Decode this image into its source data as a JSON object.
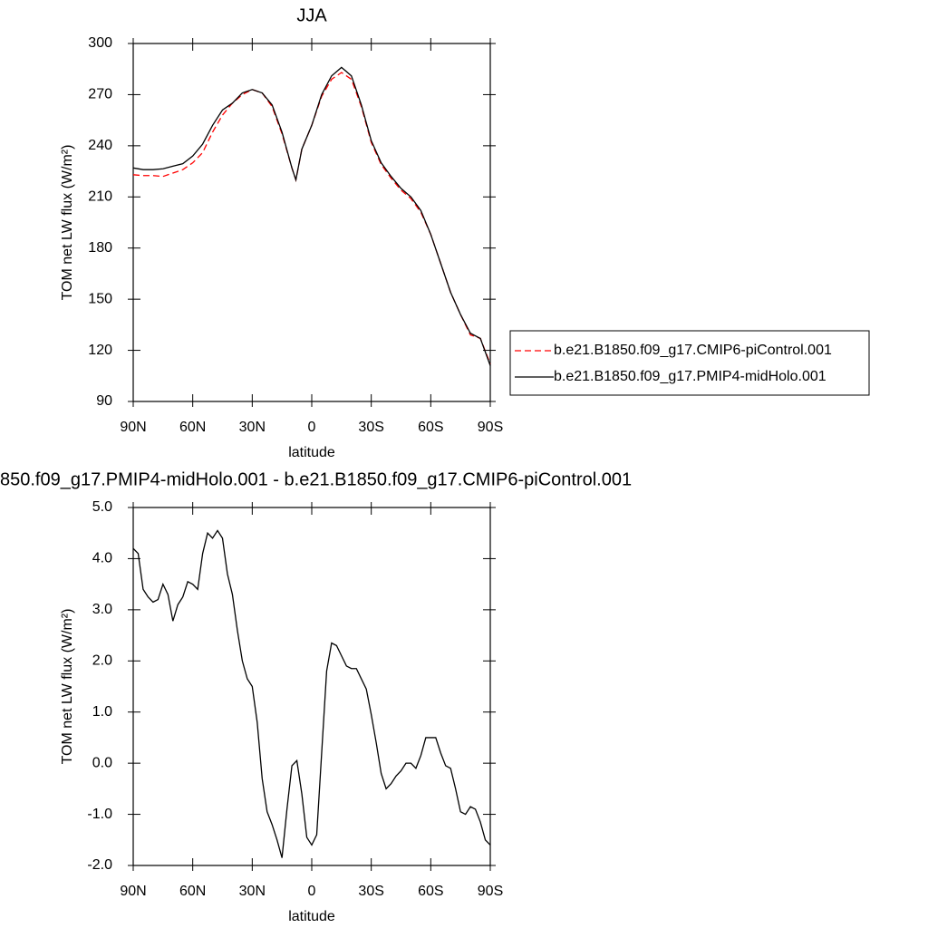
{
  "chart_data": [
    {
      "type": "line",
      "title": "JJA",
      "xlabel": "latitude",
      "ylabel": "TOM net LW flux (W/m²)",
      "x": [
        90,
        85,
        80,
        75,
        70,
        65,
        60,
        55,
        50,
        45,
        40,
        35,
        30,
        25,
        20,
        15,
        10,
        8,
        5,
        0,
        -5,
        -10,
        -15,
        -20,
        -25,
        -30,
        -35,
        -40,
        -45,
        -50,
        -55,
        -60,
        -65,
        -70,
        -75,
        -80,
        -85,
        -90
      ],
      "series": [
        {
          "name": "b.e21.B1850.f09_g17.CMIP6-piControl.001",
          "color": "#ff0000",
          "style": "dashed",
          "values": [
            223,
            222.5,
            222.5,
            222,
            224,
            226,
            230,
            236,
            248,
            258,
            265,
            270,
            273,
            271,
            263,
            247,
            227,
            220,
            238,
            252,
            269,
            279,
            283,
            279,
            263,
            242,
            229,
            221,
            214,
            209,
            201,
            188,
            171,
            154,
            141,
            129,
            127,
            112
          ]
        },
        {
          "name": "b.e21.B1850.f09_g17.PMIP4-midHolo.001",
          "color": "#000000",
          "style": "solid",
          "values": [
            227,
            226,
            226,
            226.5,
            228,
            229.5,
            234,
            241,
            252,
            261,
            265,
            271,
            273,
            271,
            264,
            248,
            227,
            220,
            238,
            252,
            270,
            281,
            286,
            281,
            264,
            243,
            230,
            222,
            215,
            210,
            202,
            188,
            171,
            154,
            141,
            130,
            127,
            111
          ]
        }
      ],
      "xlim": [
        90,
        -90
      ],
      "xticks": [
        {
          "value": 90,
          "label": "90N"
        },
        {
          "value": 60,
          "label": "60N"
        },
        {
          "value": 30,
          "label": "30N"
        },
        0,
        {
          "value": -30,
          "label": "30S"
        },
        {
          "value": -60,
          "label": "60S"
        },
        {
          "value": -90,
          "label": "90S"
        }
      ],
      "ylim": [
        90,
        300
      ],
      "yticks": [
        90,
        120,
        150,
        180,
        210,
        240,
        270,
        300
      ],
      "legend": "right"
    },
    {
      "type": "line",
      "title": "850.f09_g17.PMIP4-midHolo.001 - b.e21.B1850.f09_g17.CMIP6-piControl.001",
      "xlabel": "latitude",
      "ylabel": "TOM net LW flux (W/m²)",
      "x": [
        90,
        87.5,
        85,
        82.5,
        80,
        77.5,
        75,
        72.5,
        70,
        67.5,
        65,
        62.5,
        60,
        57.5,
        55,
        52.5,
        50,
        47.5,
        45,
        42.5,
        40,
        37.5,
        35,
        32.5,
        30,
        27.5,
        25,
        22.5,
        20,
        17.5,
        15,
        12.5,
        10,
        7.5,
        5,
        2.5,
        0,
        -2.5,
        -5,
        -7.5,
        -10,
        -12.5,
        -15,
        -17.5,
        -20,
        -22.5,
        -25,
        -27.5,
        -30,
        -32.5,
        -35,
        -37.5,
        -40,
        -42.5,
        -45,
        -47.5,
        -50,
        -52.5,
        -55,
        -57.5,
        -60,
        -62.5,
        -65,
        -67.5,
        -70,
        -72.5,
        -75,
        -77.5,
        -80,
        -82.5,
        -85,
        -87.5,
        -90
      ],
      "series": [
        {
          "color": "#000000",
          "style": "solid",
          "values": [
            4.2,
            4.1,
            3.4,
            3.25,
            3.15,
            3.2,
            3.5,
            3.3,
            2.78,
            3.1,
            3.25,
            3.55,
            3.5,
            3.4,
            4.1,
            4.5,
            4.4,
            4.55,
            4.4,
            3.7,
            3.3,
            2.6,
            2.0,
            1.65,
            1.5,
            0.8,
            -0.3,
            -0.95,
            -1.2,
            -1.5,
            -1.85,
            -0.9,
            -0.05,
            0.05,
            -0.6,
            -1.45,
            -1.6,
            -1.4,
            0.2,
            1.8,
            2.35,
            2.3,
            2.1,
            1.9,
            1.85,
            1.85,
            1.65,
            1.45,
            0.95,
            0.4,
            -0.2,
            -0.5,
            -0.4,
            -0.25,
            -0.15,
            0.0,
            0.0,
            -0.1,
            0.15,
            0.5,
            0.5,
            0.5,
            0.2,
            -0.05,
            -0.1,
            -0.5,
            -0.95,
            -1.0,
            -0.85,
            -0.9,
            -1.15,
            -1.5,
            -1.6
          ]
        }
      ],
      "xlim": [
        90,
        -90
      ],
      "xticks": [
        {
          "value": 90,
          "label": "90N"
        },
        {
          "value": 60,
          "label": "60N"
        },
        {
          "value": 30,
          "label": "30N"
        },
        0,
        {
          "value": -30,
          "label": "30S"
        },
        {
          "value": -60,
          "label": "60S"
        },
        {
          "value": -90,
          "label": "90S"
        }
      ],
      "ylim": [
        -2,
        5
      ],
      "yticks": [
        {
          "value": -2,
          "label": "-2.0"
        },
        {
          "value": -1,
          "label": "-1.0"
        },
        {
          "value": 0,
          "label": "0.0"
        },
        {
          "value": 1,
          "label": "1.0"
        },
        {
          "value": 2,
          "label": "2.0"
        },
        {
          "value": 3,
          "label": "3.0"
        },
        {
          "value": 4,
          "label": "4.0"
        },
        {
          "value": 5,
          "label": "5.0"
        }
      ]
    }
  ]
}
